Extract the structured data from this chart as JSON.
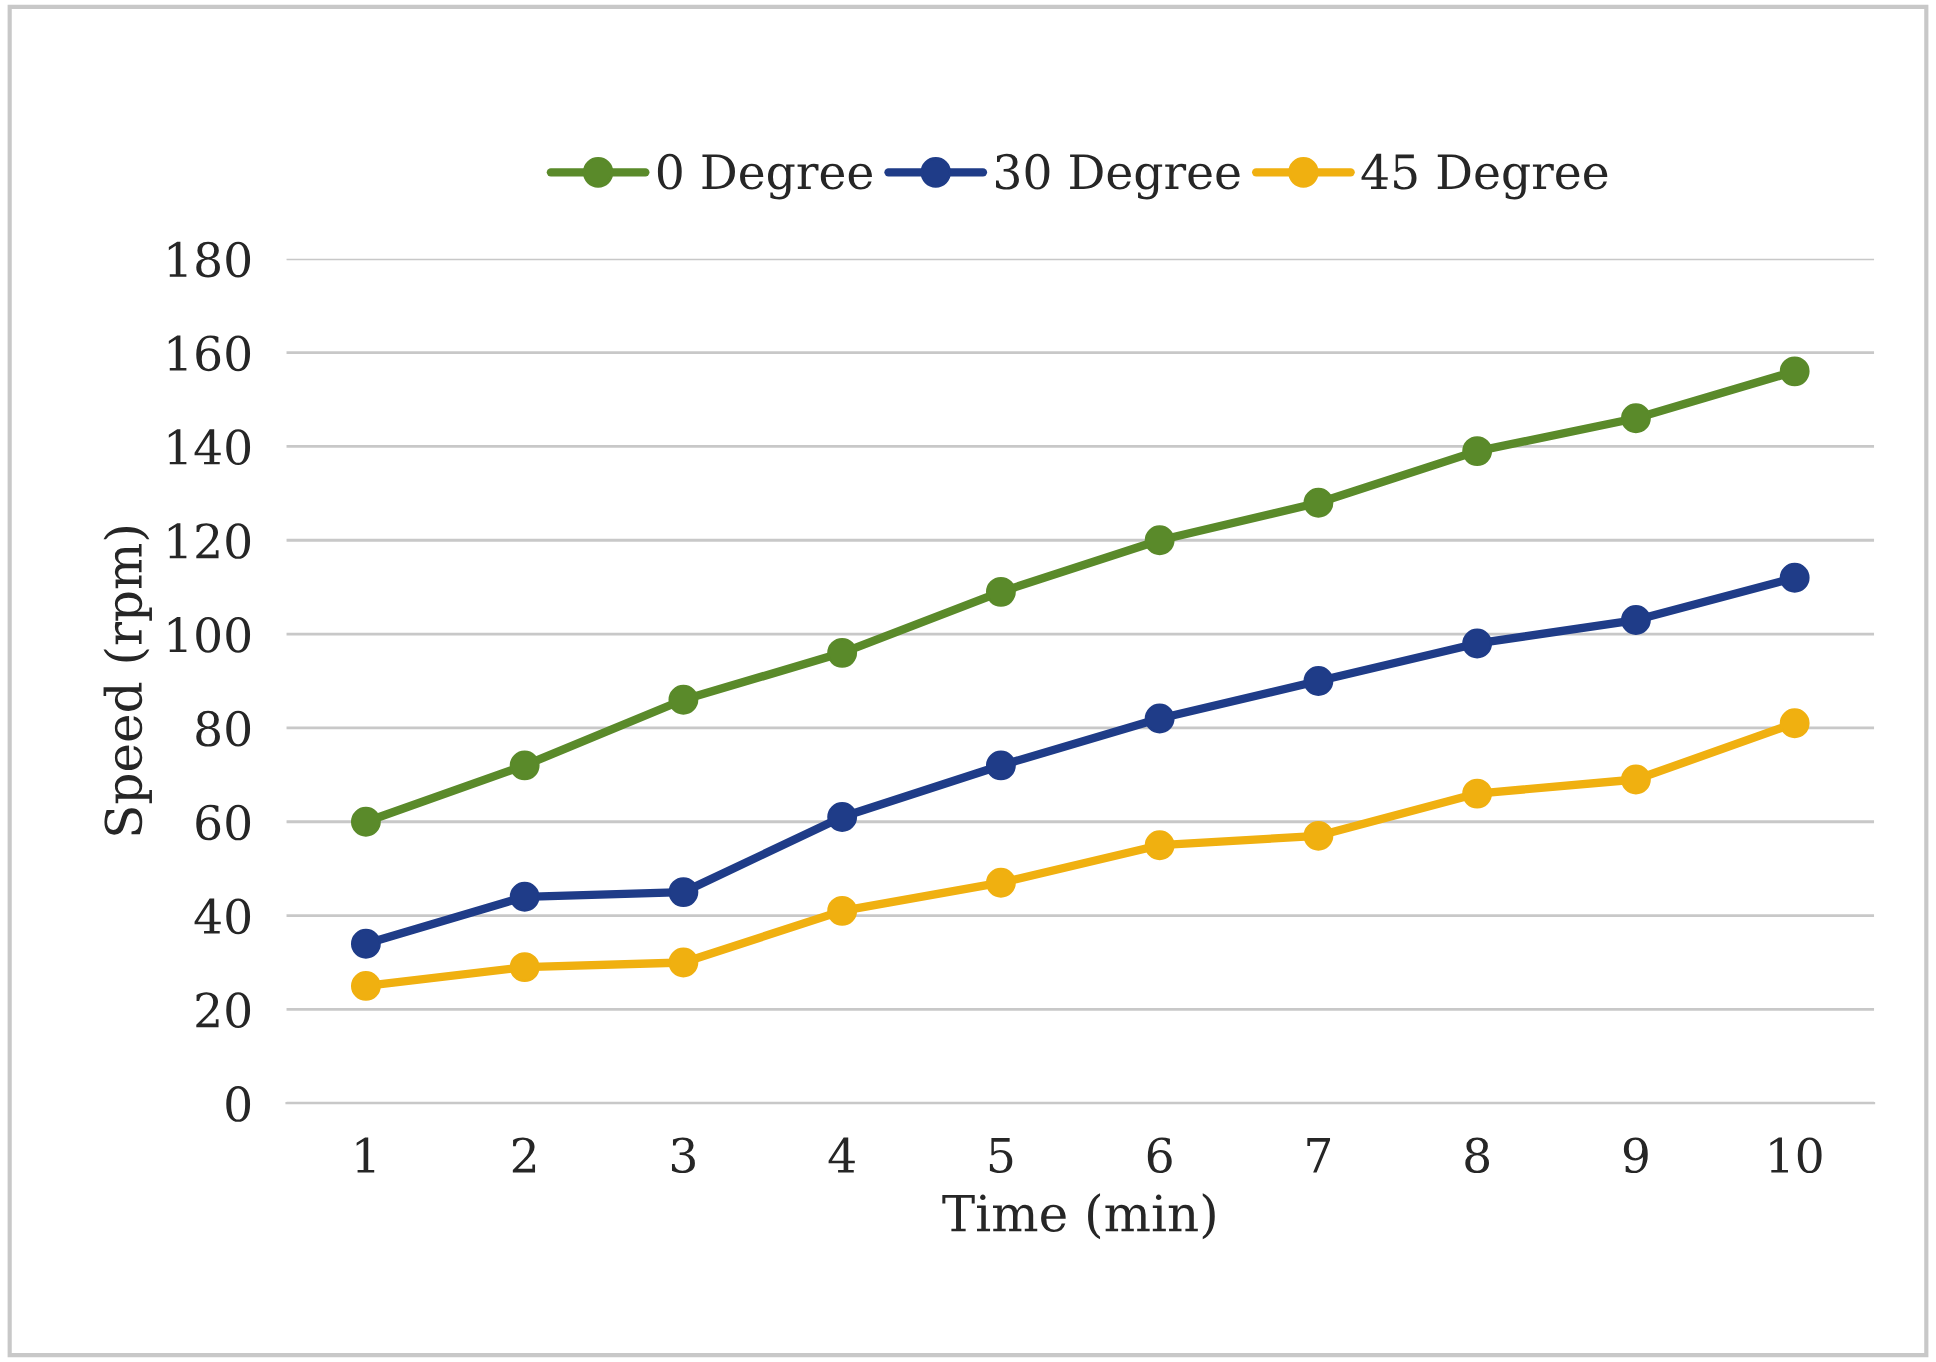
{
  "chart_data": {
    "type": "line",
    "xlabel": "Time (min)",
    "ylabel": "Speed (rpm)",
    "categories": [
      "1",
      "2",
      "3",
      "4",
      "5",
      "6",
      "7",
      "8",
      "9",
      "10"
    ],
    "series": [
      {
        "name": "0 Degree",
        "color": "#5a8a2a",
        "values": [
          60,
          72,
          86,
          96,
          109,
          120,
          128,
          139,
          146,
          156
        ]
      },
      {
        "name": "30 Degree",
        "color": "#1f3c88",
        "values": [
          34,
          44,
          45,
          61,
          72,
          82,
          90,
          98,
          103,
          112
        ]
      },
      {
        "name": "45 Degree",
        "color": "#f0b010",
        "values": [
          25,
          29,
          30,
          41,
          47,
          55,
          57,
          66,
          69,
          81
        ]
      }
    ],
    "ylim": [
      0,
      180
    ],
    "yticks": [
      0,
      20,
      40,
      60,
      80,
      100,
      120,
      140,
      160,
      180
    ],
    "grid": "y",
    "legend": "top",
    "marker": "circle",
    "line_style": "solid"
  }
}
